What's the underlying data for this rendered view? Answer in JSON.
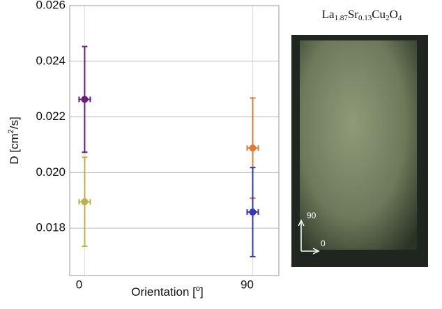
{
  "chart_data": {
    "type": "errorbar",
    "ylabel": [
      "D [cm",
      "2",
      "/s]"
    ],
    "xlabel": [
      "Orientation [",
      "o",
      "]"
    ],
    "xlim": [
      -8,
      104
    ],
    "xticks": [
      0,
      90
    ],
    "ylim": [
      0.0163,
      0.026
    ],
    "yticks": [
      {
        "value": 0.018,
        "label": "0.018"
      },
      {
        "value": 0.02,
        "label": "0.020"
      },
      {
        "value": 0.022,
        "label": "0.022"
      },
      {
        "value": 0.024,
        "label": "0.024"
      },
      {
        "value": 0.026,
        "label": "0.026"
      }
    ],
    "grid": true,
    "series": [
      {
        "color": "#6b1d7c",
        "x": [
          0
        ],
        "values": [
          0.02263
        ],
        "xerr": [
          3
        ],
        "yerr": [
          0.0019
        ]
      },
      {
        "color": "#bdb24a",
        "x": [
          0
        ],
        "values": [
          0.01895
        ],
        "xerr": [
          3
        ],
        "yerr": [
          0.0016
        ]
      },
      {
        "color": "#e07a36",
        "x": [
          90
        ],
        "values": [
          0.02088
        ],
        "xerr": [
          3
        ],
        "yerr": [
          0.0018
        ]
      },
      {
        "color": "#3535c4",
        "x": [
          90
        ],
        "values": [
          0.01858
        ],
        "xerr": [
          3
        ],
        "yerr": [
          0.0016
        ]
      }
    ]
  },
  "photo": {
    "formula": [
      "La",
      "1.87",
      "Sr",
      "0.13",
      "Cu",
      "2",
      "O",
      "4"
    ],
    "arrow_up_label": "90",
    "arrow_right_label": "0"
  }
}
